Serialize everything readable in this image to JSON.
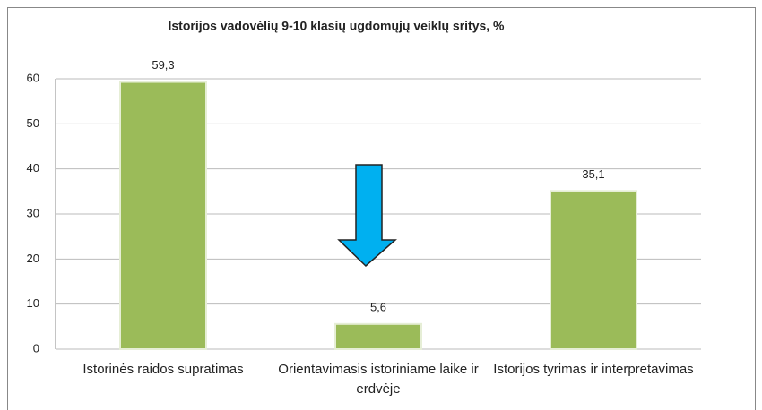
{
  "chart_data": {
    "type": "bar",
    "title": "Istorijos vadovėlių 9-10 klasių ugdomųjų  veiklų sritys, %",
    "categories": [
      "Istorinės raidos supratimas",
      "Orientavimasis istoriniame laike ir erdvėje",
      "Istorijos tyrimas ir interpretavimas"
    ],
    "values": [
      59.3,
      5.6,
      35.1
    ],
    "value_labels": [
      "59,3",
      "5,6",
      "35,1"
    ],
    "color": "#9bbb59",
    "ylim": [
      0,
      60
    ],
    "yticks": [
      0,
      10,
      20,
      30,
      40,
      50,
      60
    ],
    "grid": true
  }
}
